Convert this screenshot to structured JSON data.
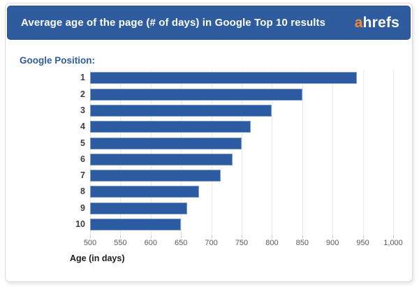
{
  "header": {
    "title": "Average age of the page (# of days) in Google Top 10 results",
    "logo": {
      "accent": "a",
      "rest": "hrefs"
    },
    "colors": {
      "banner": "#2e5c9e",
      "logo_accent": "#f18a33",
      "logo_rest": "#ffffff"
    }
  },
  "chart_data": {
    "type": "bar",
    "orientation": "horizontal",
    "title": "Average age of the page (# of days) in Google Top 10 results",
    "ylabel": "Google Position:",
    "xlabel": "Age (in days)",
    "categories": [
      "1",
      "2",
      "3",
      "4",
      "5",
      "6",
      "7",
      "8",
      "9",
      "10"
    ],
    "values": [
      940,
      850,
      800,
      765,
      750,
      735,
      715,
      680,
      660,
      650
    ],
    "xlim": [
      500,
      1000
    ],
    "xticks": [
      500,
      550,
      600,
      650,
      700,
      750,
      800,
      850,
      900,
      950,
      1000
    ],
    "xtick_labels": [
      "500",
      "550",
      "600",
      "650",
      "700",
      "750",
      "800",
      "850",
      "900",
      "950",
      "1,000"
    ],
    "grid": "vertical",
    "legend": "none",
    "colors": {
      "bar": "#2d5ba1",
      "bar_border": "#7b9cc9",
      "gridline": "#e9e9e9"
    }
  }
}
